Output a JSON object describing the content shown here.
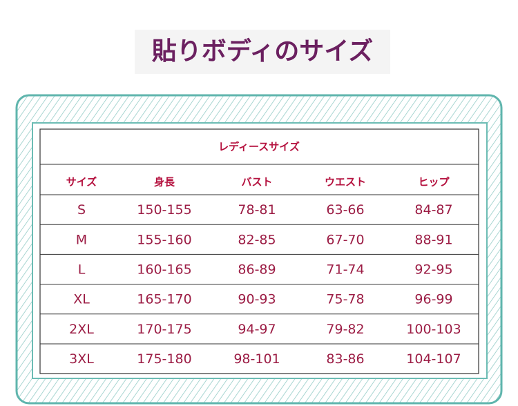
{
  "title": "貼りボディのサイズ",
  "table": {
    "caption": "レディースサイズ",
    "columns": [
      "サイズ",
      "身長",
      "バスト",
      "ウエスト",
      "ヒップ"
    ],
    "rows": [
      [
        "S",
        "150-155",
        "78-81",
        "63-66",
        "84-87"
      ],
      [
        "M",
        "155-160",
        "82-85",
        "67-70",
        "88-91"
      ],
      [
        "L",
        "160-165",
        "86-89",
        "71-74",
        "92-95"
      ],
      [
        "XL",
        "165-170",
        "90-93",
        "75-78",
        "96-99"
      ],
      [
        "2XL",
        "170-175",
        "94-97",
        "79-82",
        "100-103"
      ],
      [
        "3XL",
        "175-180",
        "98-101",
        "83-86",
        "104-107"
      ]
    ]
  }
}
